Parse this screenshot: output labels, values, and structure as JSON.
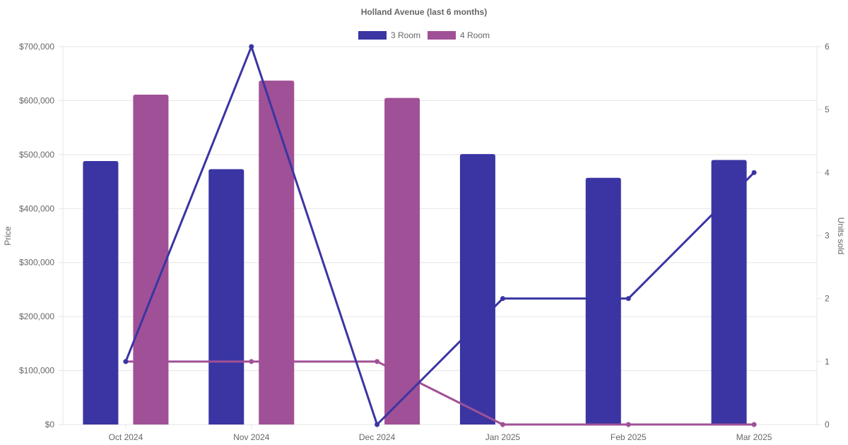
{
  "chart_data": {
    "type": "bar",
    "title": "Holland Avenue (last 6 months)",
    "categories": [
      "Oct 2024",
      "Nov 2024",
      "Dec 2024",
      "Jan 2025",
      "Feb 2025",
      "Mar 2025"
    ],
    "legend": {
      "placement": "top"
    },
    "left_axis": {
      "label": "Price",
      "ylim": [
        0,
        700000
      ],
      "ticks": [
        0,
        100000,
        200000,
        300000,
        400000,
        500000,
        600000,
        700000
      ],
      "tick_labels": [
        "$0",
        "$100,000",
        "$200,000",
        "$300,000",
        "$400,000",
        "$500,000",
        "$600,000",
        "$700,000"
      ]
    },
    "right_axis": {
      "label": "Units sold",
      "ylim": [
        0,
        6
      ],
      "ticks": [
        0,
        1,
        2,
        3,
        4,
        5,
        6
      ],
      "tick_labels": [
        "0",
        "1",
        "2",
        "3",
        "4",
        "5",
        "6"
      ]
    },
    "grid": true,
    "series": [
      {
        "name": "3 Room",
        "kind": "bar",
        "axis": "left",
        "color": "#3a35a3",
        "values": [
          488000,
          473000,
          0,
          501000,
          457000,
          490000
        ]
      },
      {
        "name": "4 Room",
        "kind": "bar",
        "axis": "left",
        "color": "#a05096",
        "values": [
          611000,
          637000,
          605000,
          0,
          0,
          0
        ]
      },
      {
        "kind": "line",
        "axis": "right",
        "color": "#3a35a3",
        "values": [
          1,
          6,
          0,
          2,
          2,
          4
        ]
      },
      {
        "kind": "line",
        "axis": "right",
        "color": "#a05096",
        "values": [
          1,
          1,
          1,
          0,
          0,
          0
        ]
      }
    ]
  }
}
